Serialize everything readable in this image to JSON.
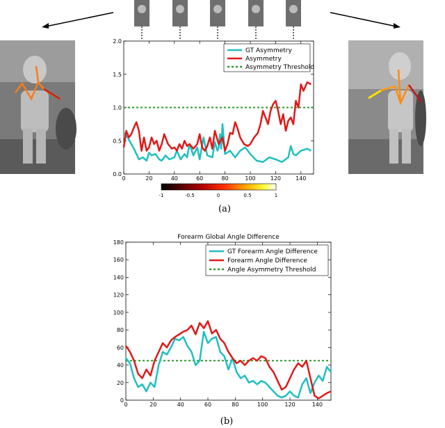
{
  "captions": {
    "a": "(a)",
    "b": "(b)"
  },
  "colors": {
    "gt": "#1ebfc0",
    "pred": "#e01818",
    "threshold": "#2a9a2a"
  },
  "colorbar": {
    "ticks": [
      "-1",
      "-0.5",
      "0",
      "0.5",
      "1"
    ]
  },
  "chart_data": [
    {
      "type": "line",
      "title": "",
      "xlabel": "",
      "ylabel": "",
      "xlim": [
        0,
        150
      ],
      "ylim": [
        0,
        2.0
      ],
      "xticks": [
        "0",
        "20",
        "40",
        "60",
        "80",
        "100",
        "120",
        "140"
      ],
      "yticks": [
        "0.0",
        "0.5",
        "1.0",
        "1.5",
        "2.0"
      ],
      "legend": "top-right",
      "threshold": {
        "name": "Asymmetry Threshold",
        "value": 1.0
      },
      "series": [
        {
          "name": "GT Asymmetry",
          "color": "#1ebfc0",
          "x": [
            0,
            3,
            6,
            8,
            10,
            12,
            15,
            18,
            20,
            22,
            25,
            28,
            30,
            33,
            36,
            40,
            42,
            45,
            48,
            50,
            52,
            55,
            58,
            60,
            63,
            66,
            70,
            72,
            74,
            75,
            76,
            77,
            78,
            80,
            84,
            88,
            92,
            96,
            100,
            105,
            110,
            115,
            120,
            125,
            130,
            132,
            134,
            136,
            140,
            145,
            148
          ],
          "y": [
            0.62,
            0.55,
            0.45,
            0.38,
            0.3,
            0.22,
            0.25,
            0.2,
            0.32,
            0.28,
            0.3,
            0.22,
            0.2,
            0.28,
            0.22,
            0.25,
            0.35,
            0.22,
            0.3,
            0.25,
            0.45,
            0.28,
            0.4,
            0.22,
            0.55,
            0.28,
            0.25,
            0.48,
            0.35,
            0.4,
            0.6,
            0.38,
            0.75,
            0.3,
            0.35,
            0.25,
            0.35,
            0.4,
            0.3,
            0.2,
            0.18,
            0.25,
            0.22,
            0.18,
            0.25,
            0.42,
            0.3,
            0.28,
            0.35,
            0.38,
            0.35
          ]
        },
        {
          "name": "Asymmetry",
          "color": "#e01818",
          "x": [
            0,
            2,
            4,
            6,
            8,
            10,
            12,
            14,
            16,
            18,
            20,
            22,
            24,
            26,
            28,
            30,
            32,
            35,
            38,
            40,
            42,
            44,
            46,
            48,
            50,
            52,
            55,
            58,
            60,
            62,
            64,
            66,
            68,
            70,
            72,
            75,
            78,
            80,
            82,
            84,
            86,
            88,
            90,
            92,
            95,
            98,
            100,
            103,
            106,
            108,
            110,
            112,
            114,
            116,
            118,
            120,
            122,
            124,
            126,
            128,
            130,
            132,
            134,
            136,
            138,
            140,
            142,
            145,
            148
          ],
          "y": [
            0.4,
            0.65,
            0.55,
            0.6,
            0.7,
            0.78,
            0.65,
            0.35,
            0.55,
            0.35,
            0.4,
            0.55,
            0.45,
            0.5,
            0.35,
            0.45,
            0.6,
            0.45,
            0.38,
            0.4,
            0.35,
            0.45,
            0.38,
            0.5,
            0.42,
            0.45,
            0.38,
            0.45,
            0.6,
            0.4,
            0.35,
            0.42,
            0.55,
            0.38,
            0.65,
            0.45,
            0.55,
            0.35,
            0.45,
            0.62,
            0.6,
            0.78,
            0.68,
            0.55,
            0.45,
            0.42,
            0.45,
            0.55,
            0.62,
            0.75,
            0.95,
            0.85,
            0.75,
            0.95,
            1.05,
            1.1,
            0.95,
            0.75,
            0.9,
            0.65,
            0.8,
            0.85,
            0.75,
            1.1,
            1.0,
            1.35,
            1.25,
            1.38,
            1.35
          ]
        }
      ]
    },
    {
      "type": "line",
      "title": "Forearm Global Angle Difference",
      "xlabel": "",
      "ylabel": "",
      "xlim": [
        0,
        150
      ],
      "ylim": [
        0,
        180
      ],
      "xticks": [
        "0",
        "20",
        "40",
        "60",
        "80",
        "100",
        "120",
        "140"
      ],
      "yticks": [
        "0",
        "20",
        "40",
        "60",
        "80",
        "100",
        "120",
        "140",
        "160",
        "180"
      ],
      "legend": "top-right",
      "threshold": {
        "name": "Angle Asymmetry Threshold",
        "value": 45
      },
      "series": [
        {
          "name": "GT Forearm Angle Difference",
          "color": "#1ebfc0",
          "x": [
            0,
            3,
            6,
            9,
            12,
            15,
            18,
            21,
            24,
            27,
            30,
            33,
            36,
            39,
            42,
            45,
            48,
            51,
            54,
            57,
            60,
            63,
            66,
            69,
            72,
            75,
            78,
            81,
            84,
            87,
            90,
            93,
            96,
            99,
            102,
            105,
            108,
            111,
            114,
            117,
            120,
            123,
            126,
            129,
            132,
            135,
            138,
            141,
            144,
            147,
            150
          ],
          "y": [
            48,
            42,
            25,
            15,
            18,
            10,
            20,
            15,
            40,
            55,
            52,
            60,
            70,
            68,
            72,
            62,
            55,
            40,
            45,
            78,
            65,
            70,
            72,
            55,
            50,
            35,
            48,
            32,
            25,
            28,
            20,
            22,
            18,
            22,
            20,
            15,
            10,
            5,
            3,
            5,
            10,
            5,
            3,
            18,
            25,
            8,
            20,
            28,
            22,
            38,
            32
          ]
        },
        {
          "name": "Forearm Angle Difference",
          "color": "#e01818",
          "x": [
            0,
            3,
            6,
            9,
            12,
            15,
            18,
            21,
            24,
            27,
            30,
            33,
            36,
            39,
            42,
            45,
            48,
            51,
            54,
            57,
            60,
            63,
            66,
            69,
            72,
            75,
            78,
            81,
            84,
            87,
            90,
            93,
            96,
            99,
            102,
            105,
            108,
            111,
            114,
            117,
            120,
            123,
            126,
            129,
            132,
            135,
            138,
            141,
            144,
            147,
            150
          ],
          "y": [
            62,
            55,
            45,
            30,
            25,
            35,
            28,
            45,
            55,
            65,
            60,
            68,
            72,
            75,
            78,
            80,
            85,
            75,
            88,
            82,
            90,
            76,
            80,
            70,
            65,
            55,
            48,
            42,
            45,
            40,
            45,
            48,
            45,
            50,
            48,
            38,
            32,
            22,
            12,
            15,
            25,
            35,
            42,
            38,
            45,
            25,
            5,
            2,
            5,
            8,
            10
          ]
        }
      ]
    }
  ]
}
